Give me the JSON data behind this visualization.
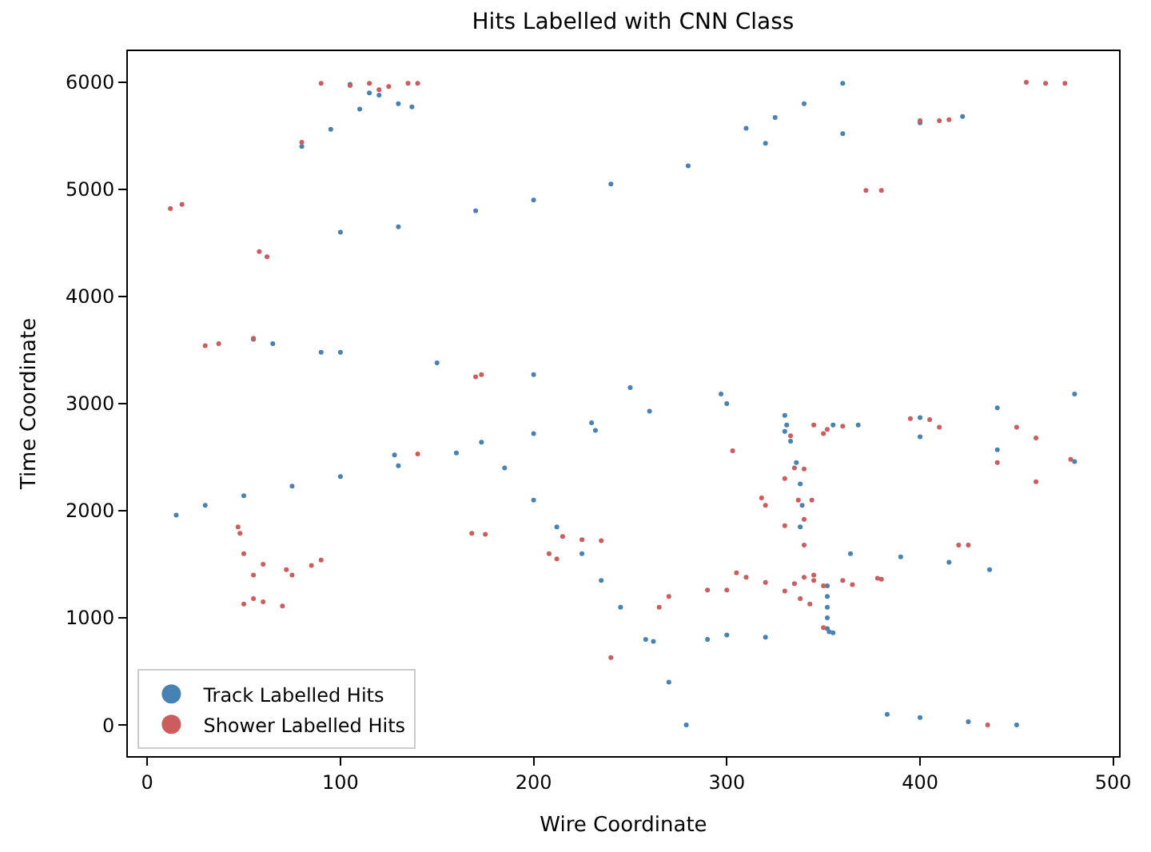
{
  "chart_data": {
    "type": "scatter",
    "title": "Hits Labelled with CNN Class",
    "xlabel": "Wire Coordinate",
    "ylabel": "Time Coordinate",
    "xlim": [
      -10,
      503
    ],
    "ylim": [
      -290,
      6290
    ],
    "xticks": [
      0,
      100,
      200,
      300,
      400,
      500
    ],
    "yticks": [
      0,
      1000,
      2000,
      3000,
      4000,
      5000,
      6000
    ],
    "legend": "bottom left",
    "marker": "circle",
    "series": [
      {
        "name": "Track Labelled Hits",
        "color": "#4682b4",
        "x": [
          15,
          30,
          50,
          75,
          100,
          130,
          160,
          173,
          200,
          230,
          260,
          297,
          55,
          100,
          150,
          200,
          250,
          300,
          330,
          355,
          400,
          440,
          480,
          330,
          368,
          400,
          440,
          480,
          185,
          200,
          212,
          225,
          235,
          245,
          258,
          270,
          279,
          100,
          130,
          170,
          200,
          240,
          280,
          320,
          360,
          400,
          422,
          310,
          325,
          340,
          360,
          80,
          95,
          110,
          120,
          105,
          115,
          130,
          137,
          262,
          290,
          300,
          320,
          353,
          352,
          352,
          352,
          352,
          352,
          331,
          333,
          336,
          338,
          339,
          338,
          364,
          390,
          415,
          436,
          383,
          400,
          425,
          450,
          90,
          232,
          355,
          65,
          128
        ],
        "values": [
          1960,
          2050,
          2140,
          2230,
          2320,
          2420,
          2540,
          2640,
          2720,
          2820,
          2930,
          3090,
          3600,
          3480,
          3380,
          3270,
          3150,
          3000,
          2890,
          2800,
          2690,
          2570,
          2460,
          2740,
          2800,
          2870,
          2960,
          3090,
          2400,
          2100,
          1850,
          1600,
          1350,
          1100,
          800,
          400,
          0,
          4600,
          4650,
          4800,
          4900,
          5050,
          5220,
          5430,
          5520,
          5620,
          5680,
          5570,
          5670,
          5800,
          5990,
          5400,
          5560,
          5750,
          5880,
          5980,
          5900,
          5800,
          5770,
          780,
          800,
          840,
          820,
          870,
          900,
          1000,
          1100,
          1200,
          1300,
          2800,
          2650,
          2450,
          2250,
          2050,
          1850,
          1600,
          1570,
          1520,
          1450,
          100,
          70,
          30,
          0,
          3480,
          2750,
          860,
          3560,
          2520
        ]
      },
      {
        "name": "Shower Labelled Hits",
        "color": "#cd5c5c",
        "x": [
          12,
          18,
          62,
          58,
          30,
          37,
          55,
          173,
          170,
          80,
          90,
          105,
          115,
          125,
          135,
          140,
          120,
          372,
          380,
          400,
          410,
          415,
          455,
          465,
          475,
          47,
          48,
          50,
          55,
          60,
          72,
          75,
          85,
          90,
          50,
          55,
          60,
          70,
          168,
          175,
          140,
          215,
          225,
          235,
          208,
          212,
          240,
          265,
          270,
          290,
          300,
          395,
          405,
          410,
          345,
          350,
          333,
          335,
          340,
          330,
          337,
          340,
          320,
          318,
          344,
          330,
          303,
          340,
          378,
          380,
          440,
          460,
          478,
          460,
          340,
          345,
          350,
          335,
          345,
          330,
          338,
          343,
          350,
          320,
          310,
          305,
          360,
          365,
          435,
          420,
          425,
          450,
          352,
          360
        ],
        "values": [
          4820,
          4860,
          4370,
          4420,
          3540,
          3560,
          3610,
          3270,
          3250,
          5440,
          5990,
          5970,
          5990,
          5960,
          5990,
          5990,
          5930,
          4990,
          4990,
          5640,
          5640,
          5650,
          6000,
          5990,
          5990,
          1850,
          1790,
          1600,
          1400,
          1500,
          1450,
          1400,
          1490,
          1540,
          1130,
          1180,
          1150,
          1110,
          1790,
          1780,
          2530,
          1760,
          1730,
          1720,
          1600,
          1550,
          630,
          1100,
          1200,
          1260,
          1260,
          2860,
          2850,
          2780,
          2800,
          2720,
          2700,
          2400,
          2390,
          2300,
          2100,
          1920,
          2050,
          2120,
          2100,
          1860,
          2560,
          1680,
          1370,
          1360,
          2450,
          2680,
          2480,
          2270,
          1380,
          1400,
          1300,
          1320,
          1350,
          1250,
          1180,
          1130,
          910,
          1330,
          1380,
          1420,
          1350,
          1310,
          0,
          1680,
          1680,
          2780,
          2760,
          2790
        ]
      }
    ]
  }
}
